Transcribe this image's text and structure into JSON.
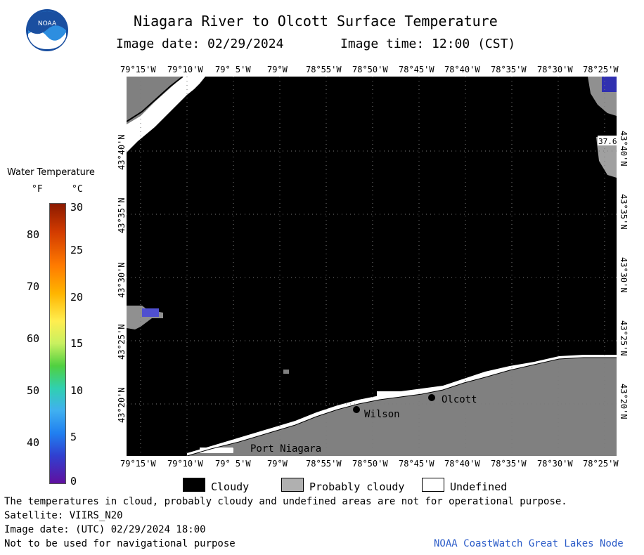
{
  "header": {
    "title": "Niagara River to Olcott Surface Temperature",
    "image_date_label": "Image date: 02/29/2024",
    "image_time_label": "Image time: 12:00 (CST)"
  },
  "logo": {
    "text": "NOAA"
  },
  "colorbar": {
    "title": "Water Temperature",
    "unit_f": "°F",
    "unit_c": "°C",
    "f_ticks": [
      "80",
      "70",
      "60",
      "50",
      "40"
    ],
    "c_ticks": [
      "30",
      "25",
      "20",
      "15",
      "10",
      "5",
      "0"
    ]
  },
  "axes": {
    "lon_labels": [
      "79°15'W",
      "79°10'W",
      "79° 5'W",
      "79°W",
      "78°55'W",
      "78°50'W",
      "78°45'W",
      "78°40'W",
      "78°35'W",
      "78°30'W",
      "78°25'W"
    ],
    "lat_labels": [
      "43°40'N",
      "43°35'N",
      "43°30'N",
      "43°25'N",
      "43°20'N"
    ]
  },
  "map_labels": {
    "port_niagara": "Port Niagara",
    "wilson": "Wilson",
    "olcott": "Olcott",
    "temp_reading": "37.6"
  },
  "legend": {
    "cloudy": "Cloudy",
    "probably_cloudy": "Probably cloudy",
    "undefined": "Undefined"
  },
  "footer": {
    "line1": "The temperatures in cloud, probably cloudy and undefined areas are not for operational purpose.",
    "line2": "Satellite: VIIRS_N20",
    "line3": "Image date: (UTC) 02/29/2024  18:00",
    "line4": "Not to be used for navigational purpose",
    "credit": "NOAA CoastWatch Great Lakes Node"
  },
  "colors": {
    "cloudy": "#000000",
    "probably_cloudy": "#808080",
    "undefined": "#ffffff",
    "credit": "#2c5cc8"
  }
}
